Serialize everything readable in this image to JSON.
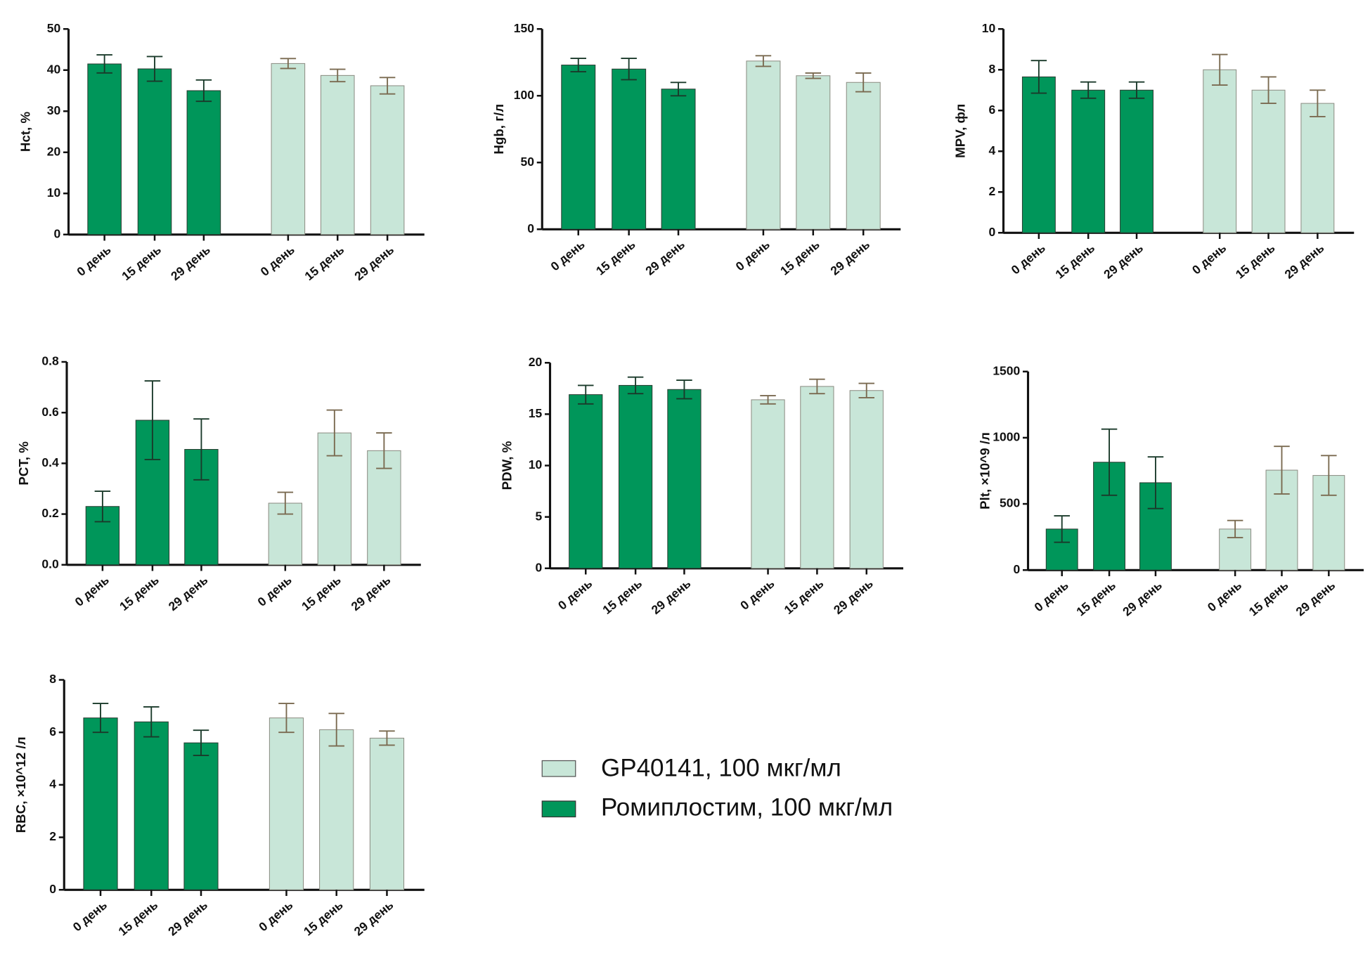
{
  "legend": {
    "series": [
      {
        "name": "GP40141, 100  мкг/мл",
        "color": "#c8e6d8"
      },
      {
        "name": "Ромиплостим, 100  мкг/мл",
        "color": "#00965a"
      }
    ]
  },
  "chart_data": [
    {
      "type": "bar",
      "ylabel": "Hct, %",
      "categories": [
        "0 день",
        "15 день",
        "29 день"
      ],
      "ylim": [
        0,
        50
      ],
      "yticks": [
        0,
        10,
        20,
        30,
        40,
        50
      ],
      "series": [
        {
          "values": [
            41.5,
            40.3,
            35
          ],
          "errors": [
            2.2,
            3,
            2.6
          ]
        },
        {
          "values": [
            41.6,
            38.7,
            36.2
          ],
          "errors": [
            1.2,
            1.5,
            2
          ]
        }
      ]
    },
    {
      "type": "bar",
      "ylabel": "Hgb, г/л",
      "categories": [
        "0 день",
        "15 день",
        "29 день"
      ],
      "ylim": [
        0,
        150
      ],
      "yticks": [
        0,
        50,
        100,
        150
      ],
      "series": [
        {
          "values": [
            123,
            120,
            105
          ],
          "errors": [
            5,
            8,
            5
          ]
        },
        {
          "values": [
            126,
            115,
            110
          ],
          "errors": [
            4,
            2,
            7
          ]
        }
      ]
    },
    {
      "type": "bar",
      "ylabel": "MPV, фл",
      "categories": [
        "0 день",
        "15 день",
        "29 день"
      ],
      "ylim": [
        0,
        10
      ],
      "yticks": [
        0,
        2,
        4,
        6,
        8,
        10
      ],
      "series": [
        {
          "values": [
            7.65,
            7.0,
            7.0
          ],
          "errors": [
            0.8,
            0.4,
            0.4
          ]
        },
        {
          "values": [
            8.0,
            7.0,
            6.35
          ],
          "errors": [
            0.75,
            0.65,
            0.65
          ]
        }
      ]
    },
    {
      "type": "bar",
      "ylabel": "PCT, %",
      "categories": [
        "0 день",
        "15 день",
        "29 день"
      ],
      "ylim": [
        0,
        0.8
      ],
      "yticks": [
        {
          "value": 0,
          "label": "0.0"
        },
        0.2,
        0.4,
        0.6,
        0.8
      ],
      "series": [
        {
          "values": [
            0.23,
            0.57,
            0.455
          ],
          "errors": [
            0.06,
            0.155,
            0.12
          ]
        },
        {
          "values": [
            0.243,
            0.52,
            0.45
          ],
          "errors": [
            0.043,
            0.09,
            0.07
          ]
        }
      ]
    },
    {
      "type": "bar",
      "ylabel": "PDW, %",
      "categories": [
        "0 день",
        "15 день",
        "29 день"
      ],
      "ylim": [
        0,
        20
      ],
      "yticks": [
        0,
        5,
        10,
        15,
        20
      ],
      "series": [
        {
          "values": [
            16.9,
            17.8,
            17.4
          ],
          "errors": [
            0.9,
            0.8,
            0.9
          ]
        },
        {
          "values": [
            16.4,
            17.7,
            17.3
          ],
          "errors": [
            0.4,
            0.7,
            0.7
          ]
        }
      ]
    },
    {
      "type": "bar",
      "ylabel": "Plt, ×10^9 /л",
      "categories": [
        "0 день",
        "15 день",
        "29 день"
      ],
      "ylim": [
        0,
        1500
      ],
      "yticks": [
        0,
        500,
        1000,
        1500
      ],
      "series": [
        {
          "values": [
            310,
            815,
            660
          ],
          "errors": [
            100,
            250,
            195
          ]
        },
        {
          "values": [
            310,
            755,
            715
          ],
          "errors": [
            65,
            180,
            150
          ]
        }
      ]
    },
    {
      "type": "bar",
      "ylabel": "RBC, ×10^12 /л",
      "categories": [
        "0 день",
        "15 день",
        "29 день"
      ],
      "ylim": [
        0,
        8
      ],
      "yticks": [
        0,
        2,
        4,
        6,
        8
      ],
      "series": [
        {
          "values": [
            6.55,
            6.4,
            5.6
          ],
          "errors": [
            0.55,
            0.57,
            0.48
          ]
        },
        {
          "values": [
            6.55,
            6.1,
            5.78
          ],
          "errors": [
            0.55,
            0.62,
            0.27
          ]
        }
      ]
    }
  ]
}
